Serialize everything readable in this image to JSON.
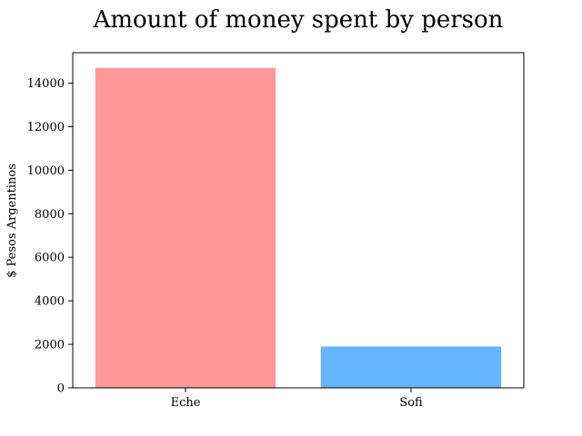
{
  "chart_data": {
    "type": "bar",
    "title": "Amount of money spent by person",
    "xlabel": "",
    "ylabel": "$ Pesos Argentinos",
    "categories": [
      "Eche",
      "Sofi"
    ],
    "values": [
      14700,
      1900
    ],
    "colors": [
      "#ff9999",
      "#66b3ff"
    ],
    "ylim": [
      0,
      15400
    ],
    "yticks": [
      0,
      2000,
      4000,
      6000,
      8000,
      10000,
      12000,
      14000
    ],
    "grid": false,
    "legend": "none"
  }
}
